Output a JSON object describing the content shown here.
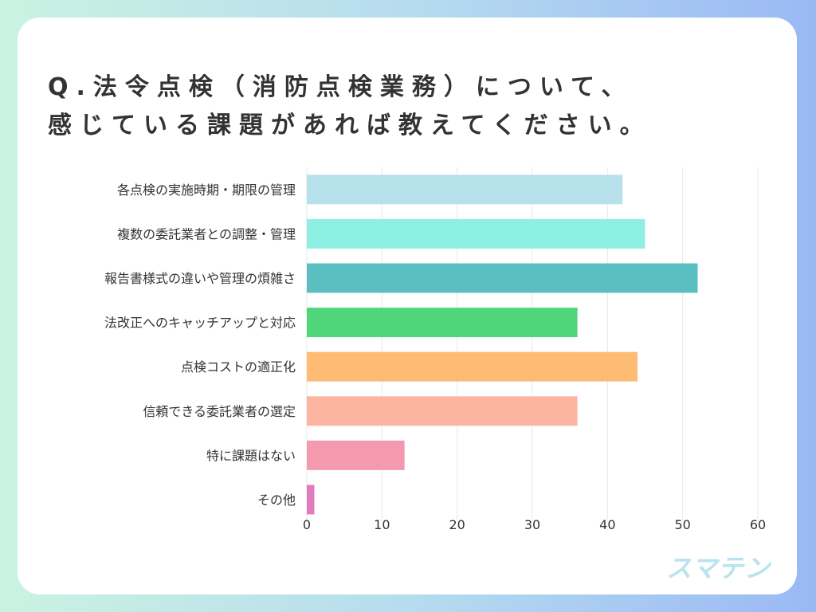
{
  "title_lines": [
    "Q.法令点検（消防点検業務）について、",
    "感じている課題があれば教えてください。"
  ],
  "logo_text": "スマテン",
  "chart_data": {
    "type": "bar",
    "orientation": "horizontal",
    "categories": [
      "各点検の実施時期・期限の管理",
      "複数の委託業者との調整・管理",
      "報告書様式の違いや管理の煩雑さ",
      "法改正へのキャッチアップと対応",
      "点検コストの適正化",
      "信頼できる委託業者の選定",
      "特に課題はない",
      "その他"
    ],
    "values": [
      42,
      45,
      52,
      36,
      44,
      36,
      13,
      1
    ],
    "colors": [
      "#b7e1ea",
      "#8ef0e2",
      "#5bbfc2",
      "#4fd67b",
      "#fdbb73",
      "#fdb4a0",
      "#f59aae",
      "#e27bbd"
    ],
    "xlim": [
      0,
      60
    ],
    "xticks": [
      0,
      10,
      20,
      30,
      40,
      50,
      60
    ],
    "grid": true
  }
}
